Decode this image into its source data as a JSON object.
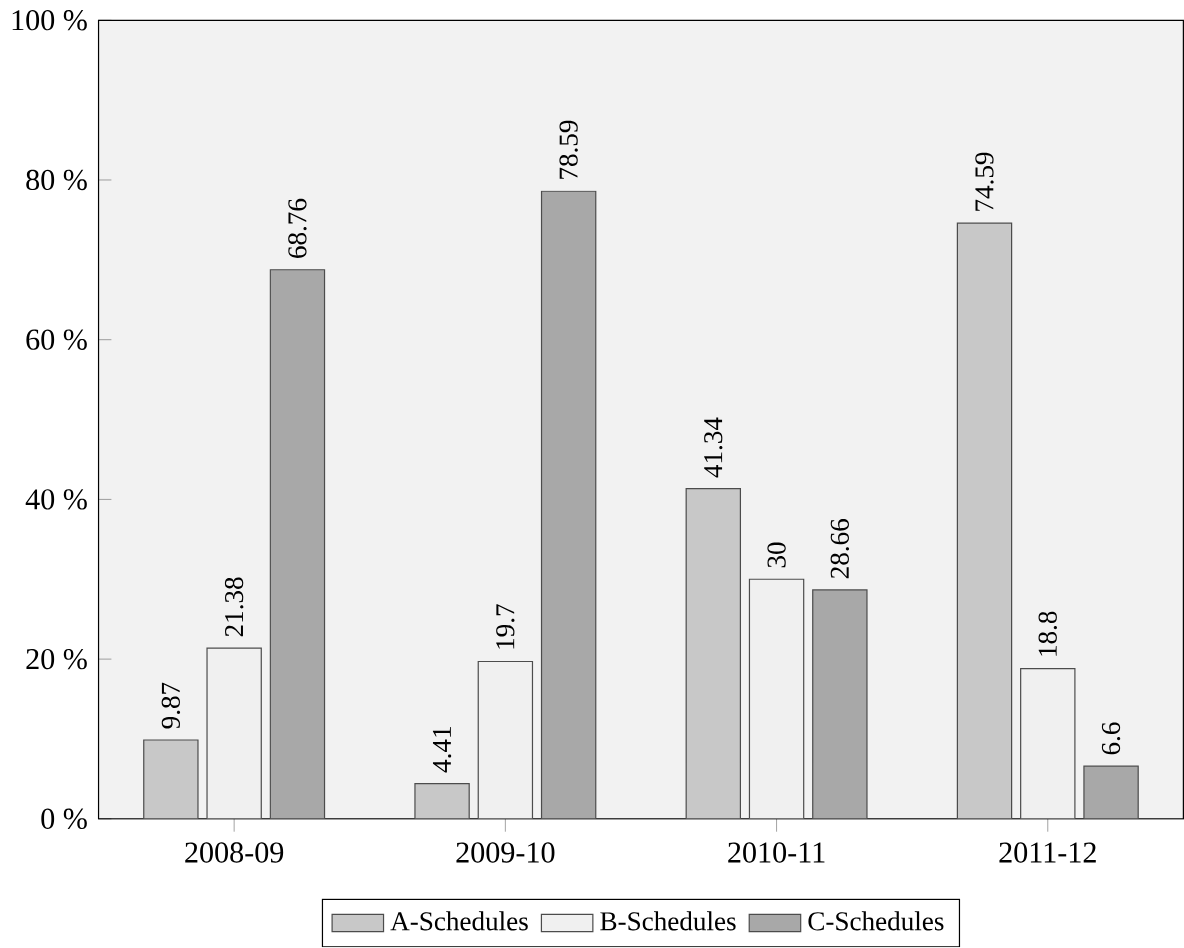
{
  "chart_data": {
    "type": "bar",
    "categories": [
      "2008-09",
      "2009-10",
      "2010-11",
      "2011-12"
    ],
    "series": [
      {
        "name": "A-Schedules",
        "color": "#c8c8c8",
        "values": [
          9.87,
          4.41,
          41.34,
          74.59
        ]
      },
      {
        "name": "B-Schedules",
        "color": "#f0f0f0",
        "values": [
          21.38,
          19.7,
          30,
          18.8
        ]
      },
      {
        "name": "C-Schedules",
        "color": "#a8a8a8",
        "values": [
          68.76,
          78.59,
          28.66,
          6.6
        ]
      }
    ],
    "ylim": [
      0,
      100
    ],
    "yticks": [
      {
        "value": 0,
        "label": "0 %"
      },
      {
        "value": 20,
        "label": "20 %"
      },
      {
        "value": 40,
        "label": "40 %"
      },
      {
        "value": 60,
        "label": "60 %"
      },
      {
        "value": 80,
        "label": "80 %"
      },
      {
        "value": 100,
        "label": "100 %"
      }
    ],
    "data_labels": true,
    "legend": "bottom"
  }
}
